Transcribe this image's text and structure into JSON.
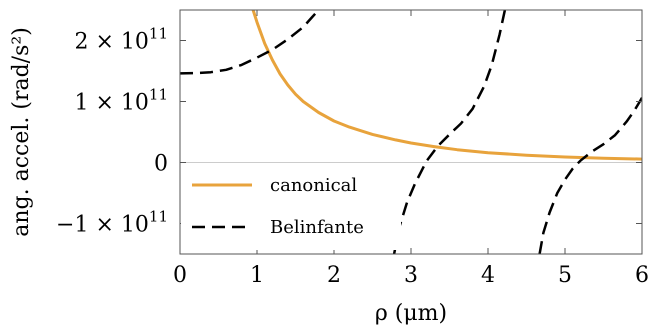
{
  "chart_data": {
    "type": "line",
    "xlabel": "ρ (μm)",
    "ylabel": "ang. accel. (rad/s²)",
    "xlim": [
      0,
      6
    ],
    "ylim": [
      -150000000000.0,
      250000000000.0
    ],
    "grid": false,
    "legend_position": "bottom-left",
    "x_ticks": [
      {
        "v": 0,
        "label": "0"
      },
      {
        "v": 1,
        "label": "1"
      },
      {
        "v": 2,
        "label": "2"
      },
      {
        "v": 3,
        "label": "3"
      },
      {
        "v": 4,
        "label": "4"
      },
      {
        "v": 5,
        "label": "5"
      },
      {
        "v": 6,
        "label": "6"
      }
    ],
    "y_ticks": [
      {
        "v": 200000000000.0,
        "mant": "2 × 10",
        "exp": "11"
      },
      {
        "v": 100000000000.0,
        "mant": "1 × 10",
        "exp": "11"
      },
      {
        "v": 0,
        "mant": "0",
        "exp": ""
      },
      {
        "v": -100000000000.0,
        "mant": "−1 × 10",
        "exp": "11"
      }
    ],
    "series": [
      {
        "name": "canonical",
        "color": "#E8A33C",
        "style": "solid",
        "x": [
          0.95,
          1.0,
          1.1,
          1.2,
          1.3,
          1.4,
          1.5,
          1.6,
          1.8,
          2.0,
          2.2,
          2.5,
          2.8,
          3.0,
          3.3,
          3.6,
          4.0,
          4.5,
          5.0,
          5.5,
          6.0
        ],
        "y": [
          250000000000.0,
          230000000000.0,
          195000000000.0,
          168000000000.0,
          145000000000.0,
          127000000000.0,
          112000000000.0,
          100000000000.0,
          82000000000.0,
          68000000000.0,
          58000000000.0,
          46000000000.0,
          37000000000.0,
          32000000000.0,
          26000000000.0,
          21000000000.0,
          16000000000.0,
          12000000000.0,
          9000000000.0,
          7000000000.0,
          5500000000.0
        ]
      },
      {
        "name": "Belinfante",
        "color": "#000000",
        "style": "dashed",
        "segments": [
          {
            "x": [
              0,
              0.2,
              0.4,
              0.6,
              0.8,
              1.0,
              1.2,
              1.4,
              1.6,
              1.7,
              1.8
            ],
            "y": [
              146000000000.0,
              146500000000.0,
              148000000000.0,
              152000000000.0,
              160000000000.0,
              172000000000.0,
              185000000000.0,
              202000000000.0,
              222000000000.0,
              236000000000.0,
              250000000000.0
            ]
          },
          {
            "x": [
              2.78,
              2.85,
              2.95,
              3.05,
              3.2,
              3.35,
              3.5,
              3.65,
              3.8,
              3.95,
              4.05,
              4.15,
              4.22
            ],
            "y": [
              -150000000000.0,
              -105000000000.0,
              -65000000000.0,
              -35000000000.0,
              2000000000.0,
              27000000000.0,
              46000000000.0,
              64000000000.0,
              88000000000.0,
              125000000000.0,
              160000000000.0,
              210000000000.0,
              250000000000.0
            ]
          },
          {
            "x": [
              4.67,
              4.72,
              4.8,
              4.9,
              5.0,
              5.1,
              5.2,
              5.35,
              5.5,
              5.65,
              5.8,
              5.9,
              6.0
            ],
            "y": [
              -150000000000.0,
              -115000000000.0,
              -82000000000.0,
              -50000000000.0,
              -28000000000.0,
              -10000000000.0,
              3000000000.0,
              18000000000.0,
              30000000000.0,
              45000000000.0,
              67000000000.0,
              85000000000.0,
              106000000000.0
            ]
          }
        ]
      }
    ]
  }
}
